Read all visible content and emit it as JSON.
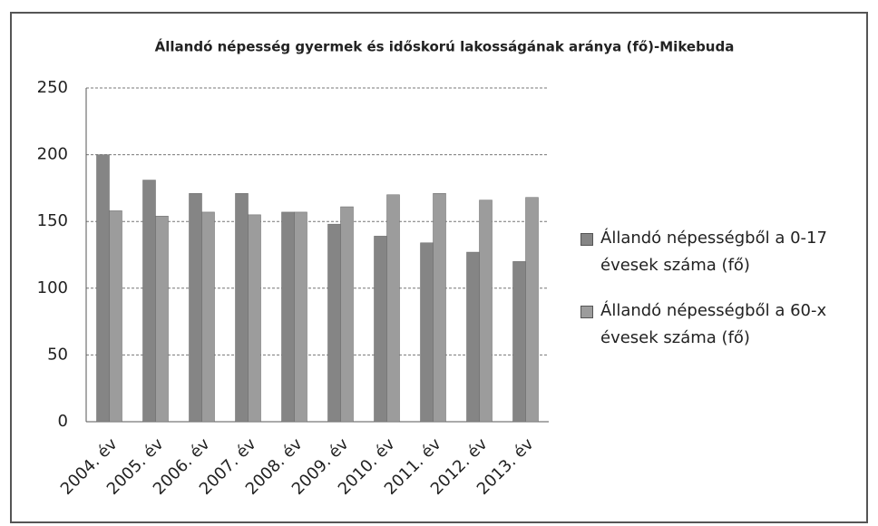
{
  "chart_data": {
    "type": "bar",
    "title": "Állandó népesség gyermek és időskorú lakosságának aránya (fő)-Mikebuda",
    "categories": [
      "2004. év",
      "2005. év",
      "2006. év",
      "2007. év",
      "2008. év",
      "2009. év",
      "2010. év",
      "2011. év",
      "2012. év",
      "2013. év"
    ],
    "series": [
      {
        "name": "Állandó népességből a 0-17 évesek száma (fő)",
        "color": "#858585",
        "values": [
          200,
          181,
          171,
          171,
          157,
          148,
          139,
          134,
          127,
          120
        ]
      },
      {
        "name": "Állandó népességből a 60-x évesek száma (fő)",
        "color": "#9c9c9c",
        "values": [
          158,
          154,
          157,
          155,
          157,
          161,
          170,
          171,
          166,
          168
        ]
      }
    ],
    "ylim": [
      0,
      250
    ],
    "yticks": [
      0,
      50,
      100,
      150,
      200,
      250
    ],
    "grid": true,
    "legend": "right"
  }
}
